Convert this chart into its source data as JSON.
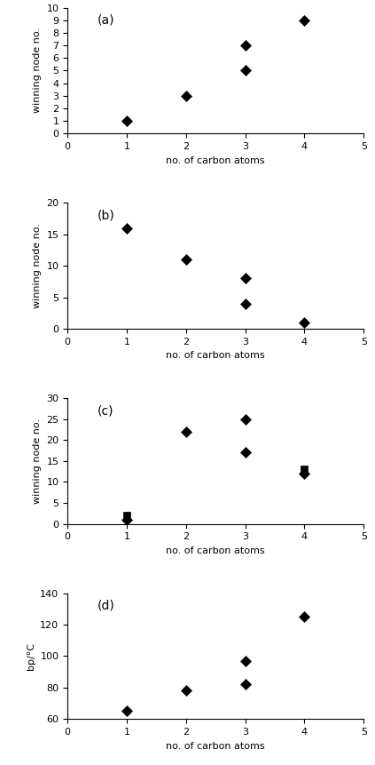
{
  "a": {
    "x": [
      1,
      2,
      3,
      3,
      4
    ],
    "y": [
      1,
      3,
      5,
      7,
      9
    ],
    "markers": [
      "D",
      "D",
      "D",
      "D",
      "D"
    ],
    "xlabel": "no. of carbon atoms",
    "ylabel": "winning node no.",
    "label": "(a)",
    "xlim": [
      0,
      5
    ],
    "ylim": [
      0,
      10
    ],
    "yticks": [
      0,
      1,
      2,
      3,
      4,
      5,
      6,
      7,
      8,
      9,
      10
    ]
  },
  "b": {
    "x": [
      1,
      2,
      3,
      3,
      4
    ],
    "y": [
      16,
      11,
      8,
      4,
      1
    ],
    "markers": [
      "D",
      "D",
      "D",
      "D",
      "D"
    ],
    "xlabel": "no. of carbon atoms",
    "ylabel": "winning node no.",
    "label": "(b)",
    "xlim": [
      0,
      5
    ],
    "ylim": [
      0,
      20
    ],
    "yticks": [
      0,
      5,
      10,
      15,
      20
    ]
  },
  "c": {
    "x": [
      1,
      1,
      2,
      3,
      3,
      4,
      4
    ],
    "y": [
      2,
      1,
      22,
      25,
      17,
      13,
      12
    ],
    "markers": [
      "s",
      "D",
      "D",
      "D",
      "D",
      "s",
      "D"
    ],
    "xlabel": "no. of carbon atoms",
    "ylabel": "winning node no.",
    "label": "(c)",
    "xlim": [
      0,
      5
    ],
    "ylim": [
      0,
      30
    ],
    "yticks": [
      0,
      5,
      10,
      15,
      20,
      25,
      30
    ]
  },
  "d": {
    "x": [
      1,
      2,
      3,
      3,
      4
    ],
    "y": [
      65,
      78,
      97,
      82,
      125
    ],
    "markers": [
      "D",
      "D",
      "D",
      "D",
      "D"
    ],
    "xlabel": "no. of carbon atoms",
    "ylabel": "bp/°C",
    "label": "(d)",
    "xlim": [
      0,
      5
    ],
    "ylim": [
      60,
      140
    ],
    "yticks": [
      60,
      80,
      100,
      120,
      140
    ]
  },
  "marker_size": 6,
  "square_size": 6,
  "marker_color": "black",
  "tick_fontsize": 8,
  "label_fontsize": 8,
  "panel_label_fontsize": 10
}
